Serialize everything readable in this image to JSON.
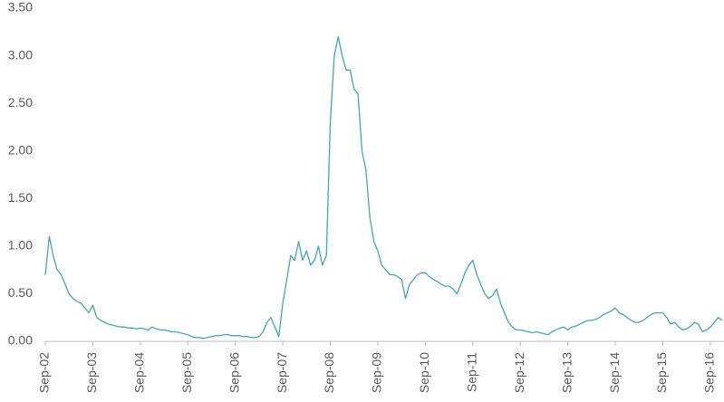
{
  "chart_data": {
    "type": "line",
    "color": "#4ba3b1",
    "categories": [
      "Sep-02",
      null,
      null,
      null,
      null,
      null,
      null,
      null,
      null,
      null,
      null,
      null,
      "Sep-03",
      null,
      null,
      null,
      null,
      null,
      null,
      null,
      null,
      null,
      null,
      null,
      "Sep-04",
      null,
      null,
      null,
      null,
      null,
      null,
      null,
      null,
      null,
      null,
      null,
      "Sep-05",
      null,
      null,
      null,
      null,
      null,
      null,
      null,
      null,
      null,
      null,
      null,
      "Sep-06",
      null,
      null,
      null,
      null,
      null,
      null,
      null,
      null,
      null,
      null,
      null,
      "Sep-07",
      null,
      null,
      null,
      null,
      null,
      null,
      null,
      null,
      null,
      null,
      null,
      "Sep-08",
      null,
      null,
      null,
      null,
      null,
      null,
      null,
      null,
      null,
      null,
      null,
      "Sep-09",
      null,
      null,
      null,
      null,
      null,
      null,
      null,
      null,
      null,
      null,
      null,
      "Sep-10",
      null,
      null,
      null,
      null,
      null,
      null,
      null,
      null,
      null,
      null,
      null,
      "Sep-11",
      null,
      null,
      null,
      null,
      null,
      null,
      null,
      null,
      null,
      null,
      null,
      "Sep-12",
      null,
      null,
      null,
      null,
      null,
      null,
      null,
      null,
      null,
      null,
      null,
      "Sep-13",
      null,
      null,
      null,
      null,
      null,
      null,
      null,
      null,
      null,
      null,
      null,
      "Sep-14",
      null,
      null,
      null,
      null,
      null,
      null,
      null,
      null,
      null,
      null,
      null,
      "Sep-15",
      null,
      null,
      null,
      null,
      null,
      null,
      null,
      null,
      null,
      null,
      null,
      "Sep-16",
      null,
      null,
      null
    ],
    "values": [
      0.7,
      1.1,
      0.9,
      0.75,
      0.7,
      0.6,
      0.5,
      0.45,
      0.42,
      0.4,
      0.35,
      0.3,
      0.38,
      0.25,
      0.22,
      0.2,
      0.18,
      0.17,
      0.16,
      0.15,
      0.15,
      0.14,
      0.14,
      0.13,
      0.14,
      0.13,
      0.12,
      0.15,
      0.13,
      0.12,
      0.12,
      0.11,
      0.1,
      0.1,
      0.09,
      0.08,
      0.07,
      0.05,
      0.04,
      0.04,
      0.03,
      0.04,
      0.05,
      0.06,
      0.06,
      0.07,
      0.07,
      0.06,
      0.06,
      0.06,
      0.05,
      0.05,
      0.04,
      0.04,
      0.05,
      0.1,
      0.2,
      0.25,
      0.15,
      0.05,
      0.4,
      0.65,
      0.9,
      0.85,
      1.05,
      0.85,
      0.95,
      0.8,
      0.85,
      1.0,
      0.8,
      0.9,
      2.3,
      3.0,
      3.2,
      3.0,
      2.85,
      2.85,
      2.65,
      2.6,
      2.0,
      1.8,
      1.3,
      1.05,
      0.95,
      0.8,
      0.75,
      0.7,
      0.7,
      0.68,
      0.65,
      0.45,
      0.6,
      0.65,
      0.7,
      0.72,
      0.72,
      0.68,
      0.65,
      0.63,
      0.6,
      0.58,
      0.58,
      0.55,
      0.5,
      0.6,
      0.72,
      0.8,
      0.85,
      0.7,
      0.6,
      0.5,
      0.45,
      0.48,
      0.55,
      0.4,
      0.3,
      0.2,
      0.15,
      0.12,
      0.12,
      0.11,
      0.1,
      0.09,
      0.1,
      0.09,
      0.08,
      0.07,
      0.1,
      0.12,
      0.14,
      0.15,
      0.12,
      0.15,
      0.16,
      0.18,
      0.2,
      0.22,
      0.22,
      0.23,
      0.25,
      0.28,
      0.3,
      0.32,
      0.35,
      0.3,
      0.28,
      0.25,
      0.22,
      0.2,
      0.2,
      0.22,
      0.25,
      0.28,
      0.3,
      0.3,
      0.3,
      0.25,
      0.18,
      0.2,
      0.15,
      0.12,
      0.13,
      0.16,
      0.2,
      0.18,
      0.1,
      0.12,
      0.15,
      0.2,
      0.25,
      0.22
    ],
    "ylim": [
      0,
      3.5
    ],
    "yticks": [
      {
        "value": 0,
        "label": "0.00"
      },
      {
        "value": 0.5,
        "label": "0.50"
      },
      {
        "value": 1,
        "label": "1.00"
      },
      {
        "value": 1.5,
        "label": "1.50"
      },
      {
        "value": 2,
        "label": "2.00"
      },
      {
        "value": 2.5,
        "label": "2.50"
      },
      {
        "value": 3,
        "label": "3.00"
      },
      {
        "value": 3.5,
        "label": "3.50"
      }
    ]
  }
}
